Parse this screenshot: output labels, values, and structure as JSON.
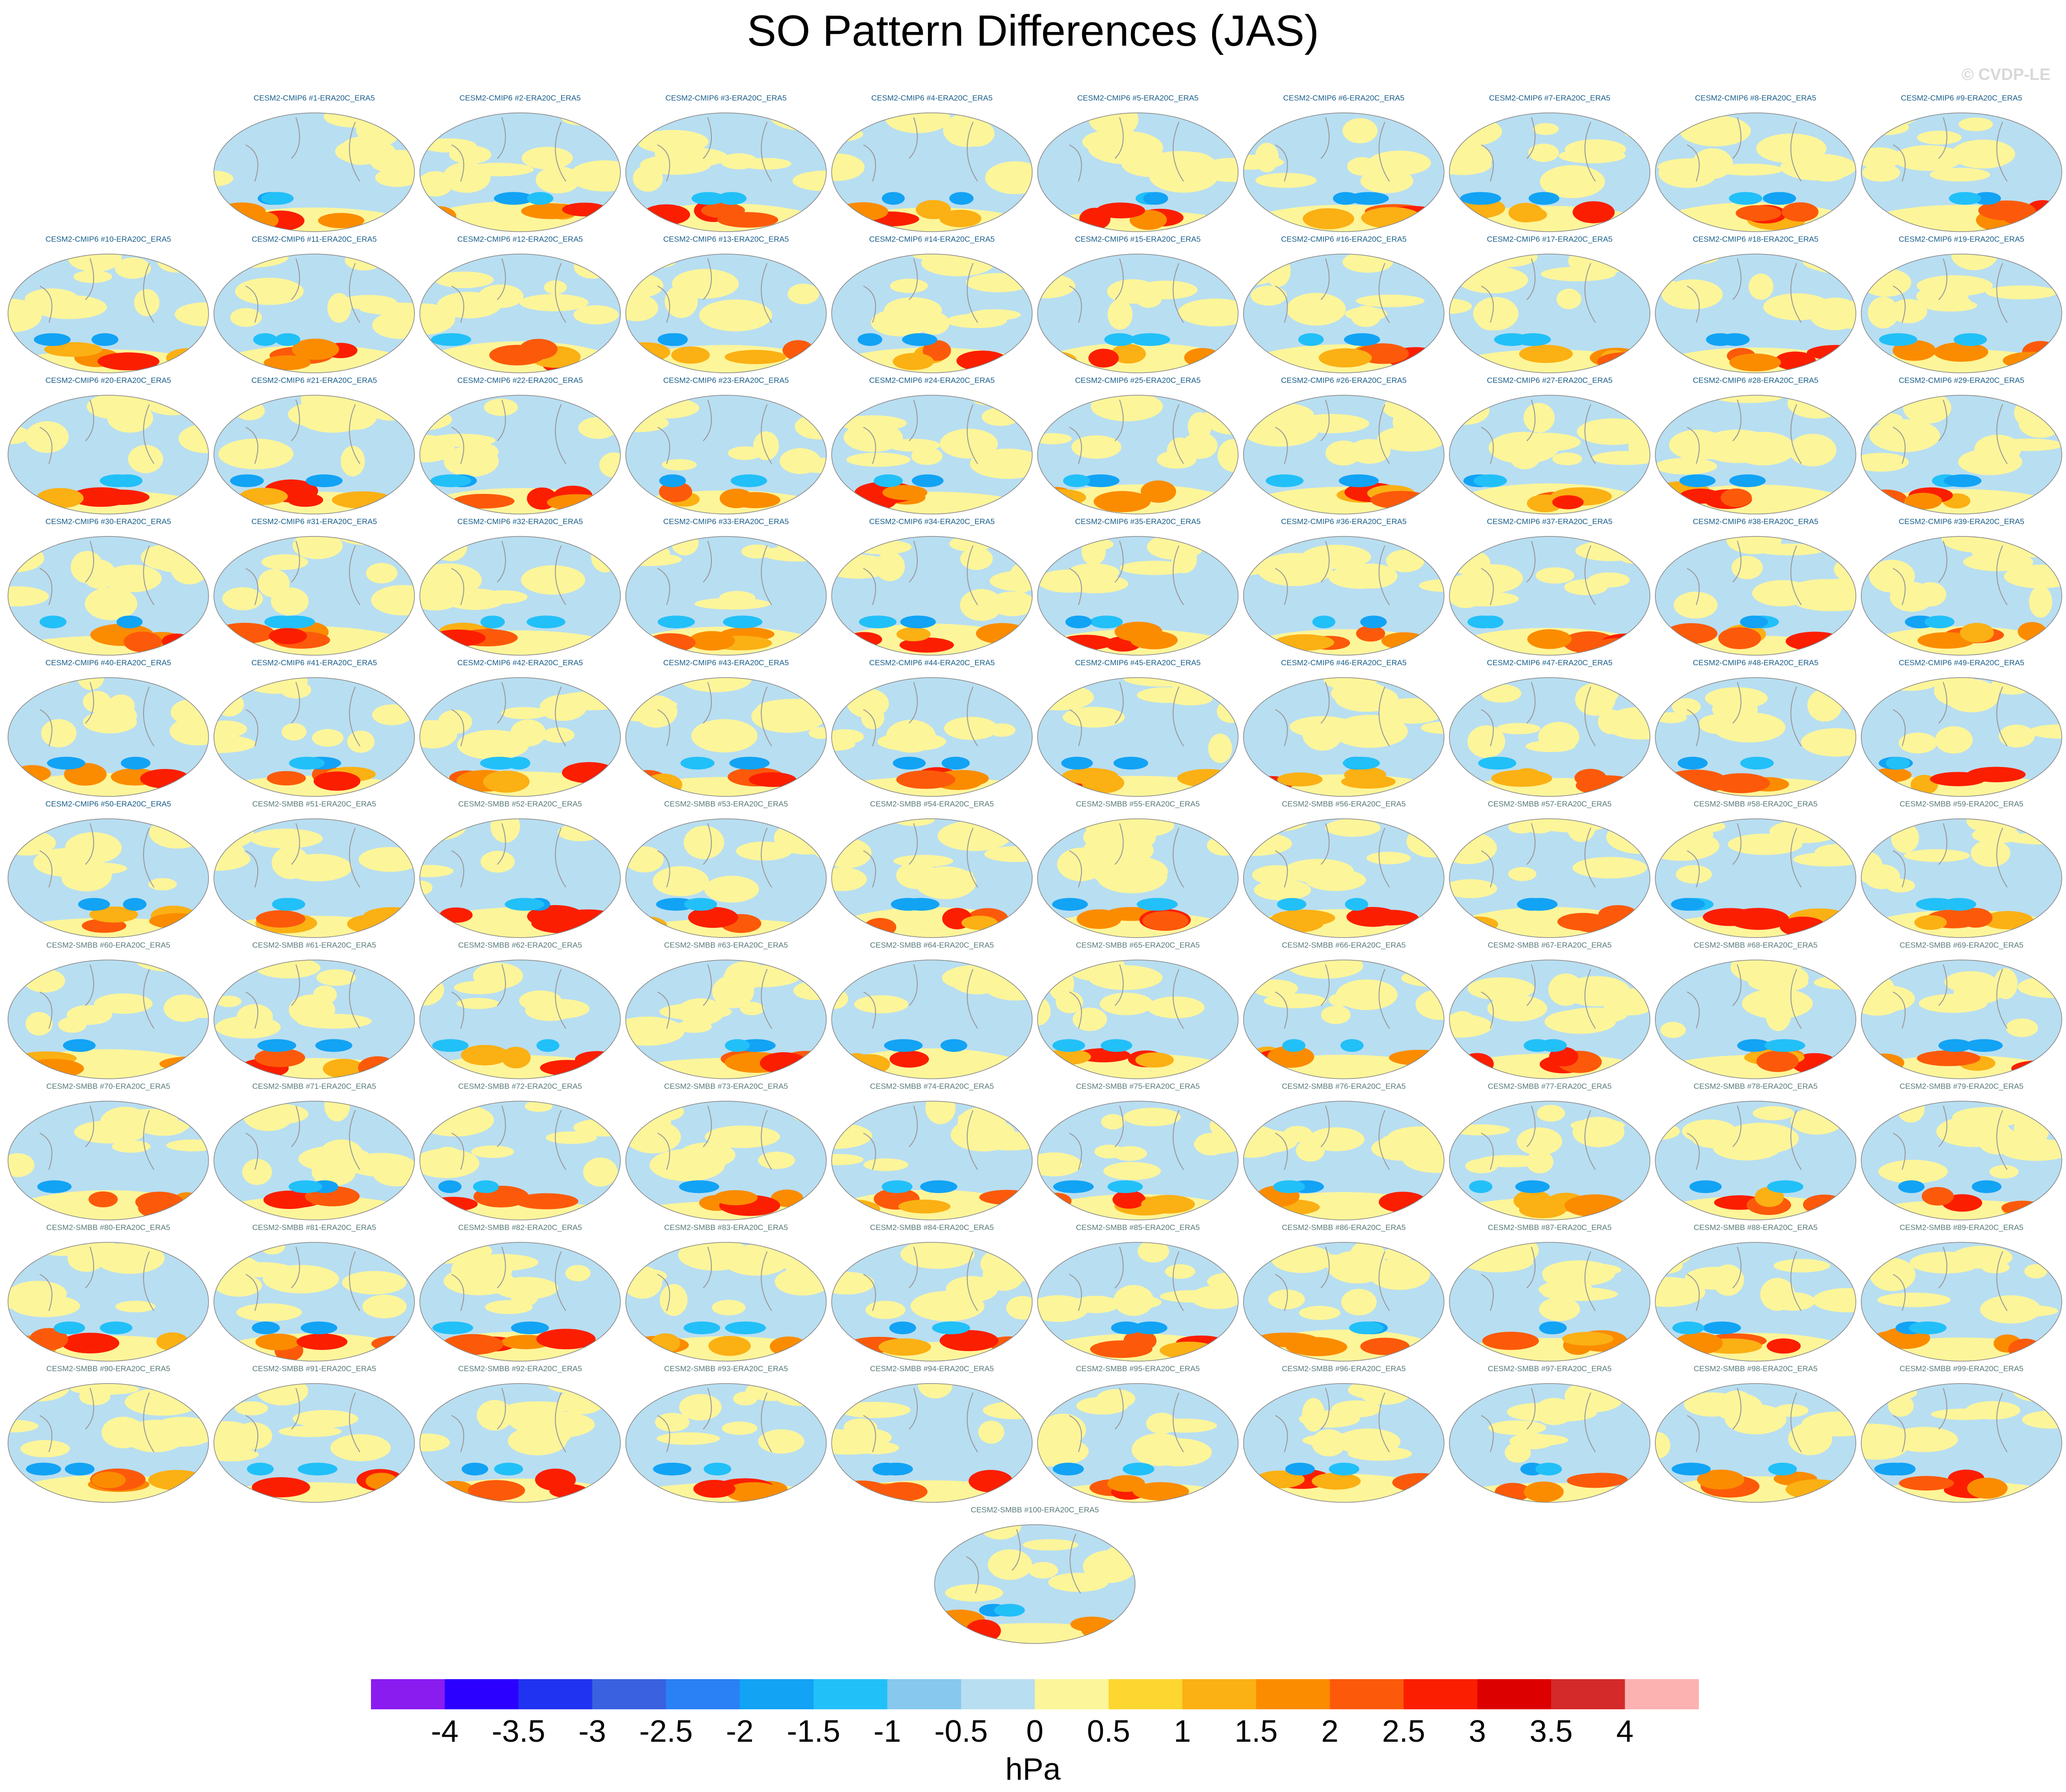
{
  "title": "SO Pattern Differences (JAS)",
  "watermark": "© CVDP-LE",
  "panels": [
    "CESM2-CMIP6 #1-ERA20C_ERA5",
    "CESM2-CMIP6 #2-ERA20C_ERA5",
    "CESM2-CMIP6 #3-ERA20C_ERA5",
    "CESM2-CMIP6 #4-ERA20C_ERA5",
    "CESM2-CMIP6 #5-ERA20C_ERA5",
    "CESM2-CMIP6 #6-ERA20C_ERA5",
    "CESM2-CMIP6 #7-ERA20C_ERA5",
    "CESM2-CMIP6 #8-ERA20C_ERA5",
    "CESM2-CMIP6 #9-ERA20C_ERA5",
    "CESM2-CMIP6 #10-ERA20C_ERA5",
    "CESM2-CMIP6 #11-ERA20C_ERA5",
    "CESM2-CMIP6 #12-ERA20C_ERA5",
    "CESM2-CMIP6 #13-ERA20C_ERA5",
    "CESM2-CMIP6 #14-ERA20C_ERA5",
    "CESM2-CMIP6 #15-ERA20C_ERA5",
    "CESM2-CMIP6 #16-ERA20C_ERA5",
    "CESM2-CMIP6 #17-ERA20C_ERA5",
    "CESM2-CMIP6 #18-ERA20C_ERA5",
    "CESM2-CMIP6 #19-ERA20C_ERA5",
    "CESM2-CMIP6 #20-ERA20C_ERA5",
    "CESM2-CMIP6 #21-ERA20C_ERA5",
    "CESM2-CMIP6 #22-ERA20C_ERA5",
    "CESM2-CMIP6 #23-ERA20C_ERA5",
    "CESM2-CMIP6 #24-ERA20C_ERA5",
    "CESM2-CMIP6 #25-ERA20C_ERA5",
    "CESM2-CMIP6 #26-ERA20C_ERA5",
    "CESM2-CMIP6 #27-ERA20C_ERA5",
    "CESM2-CMIP6 #28-ERA20C_ERA5",
    "CESM2-CMIP6 #29-ERA20C_ERA5",
    "CESM2-CMIP6 #30-ERA20C_ERA5",
    "CESM2-CMIP6 #31-ERA20C_ERA5",
    "CESM2-CMIP6 #32-ERA20C_ERA5",
    "CESM2-CMIP6 #33-ERA20C_ERA5",
    "CESM2-CMIP6 #34-ERA20C_ERA5",
    "CESM2-CMIP6 #35-ERA20C_ERA5",
    "CESM2-CMIP6 #36-ERA20C_ERA5",
    "CESM2-CMIP6 #37-ERA20C_ERA5",
    "CESM2-CMIP6 #38-ERA20C_ERA5",
    "CESM2-CMIP6 #39-ERA20C_ERA5",
    "CESM2-CMIP6 #40-ERA20C_ERA5",
    "CESM2-CMIP6 #41-ERA20C_ERA5",
    "CESM2-CMIP6 #42-ERA20C_ERA5",
    "CESM2-CMIP6 #43-ERA20C_ERA5",
    "CESM2-CMIP6 #44-ERA20C_ERA5",
    "CESM2-CMIP6 #45-ERA20C_ERA5",
    "CESM2-CMIP6 #46-ERA20C_ERA5",
    "CESM2-CMIP6 #47-ERA20C_ERA5",
    "CESM2-CMIP6 #48-ERA20C_ERA5",
    "CESM2-CMIP6 #49-ERA20C_ERA5",
    "CESM2-CMIP6 #50-ERA20C_ERA5",
    "CESM2-SMBB #51-ERA20C_ERA5",
    "CESM2-SMBB #52-ERA20C_ERA5",
    "CESM2-SMBB #53-ERA20C_ERA5",
    "CESM2-SMBB #54-ERA20C_ERA5",
    "CESM2-SMBB #55-ERA20C_ERA5",
    "CESM2-SMBB #56-ERA20C_ERA5",
    "CESM2-SMBB #57-ERA20C_ERA5",
    "CESM2-SMBB #58-ERA20C_ERA5",
    "CESM2-SMBB #59-ERA20C_ERA5",
    "CESM2-SMBB #60-ERA20C_ERA5",
    "CESM2-SMBB #61-ERA20C_ERA5",
    "CESM2-SMBB #62-ERA20C_ERA5",
    "CESM2-SMBB #63-ERA20C_ERA5",
    "CESM2-SMBB #64-ERA20C_ERA5",
    "CESM2-SMBB #65-ERA20C_ERA5",
    "CESM2-SMBB #66-ERA20C_ERA5",
    "CESM2-SMBB #67-ERA20C_ERA5",
    "CESM2-SMBB #68-ERA20C_ERA5",
    "CESM2-SMBB #69-ERA20C_ERA5",
    "CESM2-SMBB #70-ERA20C_ERA5",
    "CESM2-SMBB #71-ERA20C_ERA5",
    "CESM2-SMBB #72-ERA20C_ERA5",
    "CESM2-SMBB #73-ERA20C_ERA5",
    "CESM2-SMBB #74-ERA20C_ERA5",
    "CESM2-SMBB #75-ERA20C_ERA5",
    "CESM2-SMBB #76-ERA20C_ERA5",
    "CESM2-SMBB #77-ERA20C_ERA5",
    "CESM2-SMBB #78-ERA20C_ERA5",
    "CESM2-SMBB #79-ERA20C_ERA5",
    "CESM2-SMBB #80-ERA20C_ERA5",
    "CESM2-SMBB #81-ERA20C_ERA5",
    "CESM2-SMBB #82-ERA20C_ERA5",
    "CESM2-SMBB #83-ERA20C_ERA5",
    "CESM2-SMBB #84-ERA20C_ERA5",
    "CESM2-SMBB #85-ERA20C_ERA5",
    "CESM2-SMBB #86-ERA20C_ERA5",
    "CESM2-SMBB #87-ERA20C_ERA5",
    "CESM2-SMBB #88-ERA20C_ERA5",
    "CESM2-SMBB #89-ERA20C_ERA5",
    "CESM2-SMBB #90-ERA20C_ERA5",
    "CESM2-SMBB #91-ERA20C_ERA5",
    "CESM2-SMBB #92-ERA20C_ERA5",
    "CESM2-SMBB #93-ERA20C_ERA5",
    "CESM2-SMBB #94-ERA20C_ERA5",
    "CESM2-SMBB #95-ERA20C_ERA5",
    "CESM2-SMBB #96-ERA20C_ERA5",
    "CESM2-SMBB #97-ERA20C_ERA5",
    "CESM2-SMBB #98-ERA20C_ERA5",
    "CESM2-SMBB #99-ERA20C_ERA5",
    "CESM2-SMBB #100-ERA20C_ERA5"
  ],
  "colorbar": {
    "colors": [
      "#8a1cf0",
      "#2c00ff",
      "#2033f0",
      "#3a62e0",
      "#2a80f5",
      "#12a3f5",
      "#22c0f8",
      "#86c8ee",
      "#b8def1",
      "#fdf59a",
      "#fdd630",
      "#fbb014",
      "#fb8c00",
      "#fc5a0a",
      "#fc1e00",
      "#dd0000",
      "#d42a2a",
      "#fdb2b2"
    ],
    "ticks": [
      -4,
      -3.5,
      -3,
      -2.5,
      -2,
      -1.5,
      -1,
      -0.5,
      0,
      0.5,
      1,
      1.5,
      2,
      2.5,
      3,
      3.5,
      4
    ],
    "unit": "hPa"
  }
}
